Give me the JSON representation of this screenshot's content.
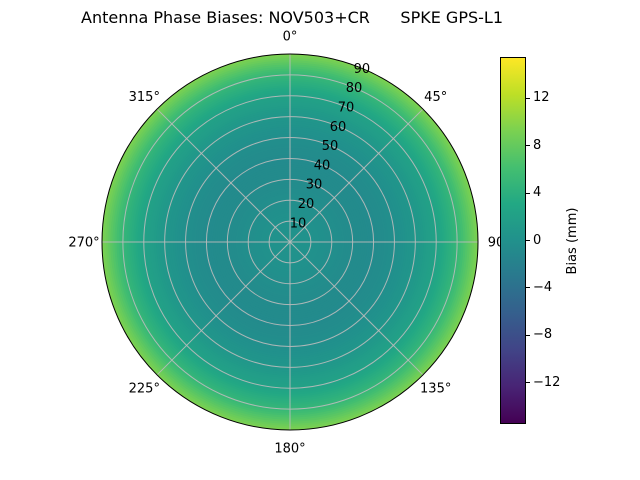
{
  "chart_data": {
    "type": "heatmap",
    "projection": "polar",
    "title": "Antenna Phase Biases: NOV503+CR      SPKE GPS-L1",
    "background_color": "#ffffff",
    "grid_color": "#bbbbbb",
    "outline_color": "#000000",
    "angular_ticks": [
      {
        "angle_deg": 0,
        "label": "0°"
      },
      {
        "angle_deg": 45,
        "label": "45°"
      },
      {
        "angle_deg": 90,
        "label": "90"
      },
      {
        "angle_deg": 135,
        "label": "135°"
      },
      {
        "angle_deg": 180,
        "label": "180°"
      },
      {
        "angle_deg": 225,
        "label": "225°"
      },
      {
        "angle_deg": 270,
        "label": "270°"
      },
      {
        "angle_deg": 315,
        "label": "315°"
      }
    ],
    "radial_ticks": [
      10,
      20,
      30,
      40,
      50,
      60,
      70,
      80,
      90
    ],
    "radial_label_angle_deg": 22.5,
    "radial_axis_note": "zenith angle in degrees, 0 at center to 90 at outer edge",
    "colorbar": {
      "label": "Bias (mm)",
      "vmin": -15.5,
      "vmax": 15.5,
      "ticks": [
        {
          "value": 12,
          "label": "12"
        },
        {
          "value": 8,
          "label": "8"
        },
        {
          "value": 4,
          "label": "4"
        },
        {
          "value": 0,
          "label": "0"
        },
        {
          "value": -4,
          "label": "−4"
        },
        {
          "value": -8,
          "label": "−8"
        },
        {
          "value": -12,
          "label": "−12"
        }
      ]
    },
    "radial_profile": {
      "zenith_deg": [
        0,
        10,
        20,
        30,
        40,
        50,
        60,
        70,
        80,
        90
      ],
      "bias_mm": [
        0.3,
        0.1,
        -0.3,
        -0.7,
        -0.8,
        -0.3,
        0.7,
        2.3,
        5.0,
        9.5
      ]
    },
    "colormap": {
      "name": "viridis",
      "stops": [
        [
          0.0,
          "#440154"
        ],
        [
          0.1,
          "#482475"
        ],
        [
          0.2,
          "#414487"
        ],
        [
          0.3,
          "#355f8d"
        ],
        [
          0.4,
          "#2a788e"
        ],
        [
          0.5,
          "#21918c"
        ],
        [
          0.6,
          "#22a884"
        ],
        [
          0.7,
          "#44bf70"
        ],
        [
          0.8,
          "#7ad151"
        ],
        [
          0.9,
          "#bddf26"
        ],
        [
          1.0,
          "#fde725"
        ]
      ]
    }
  }
}
